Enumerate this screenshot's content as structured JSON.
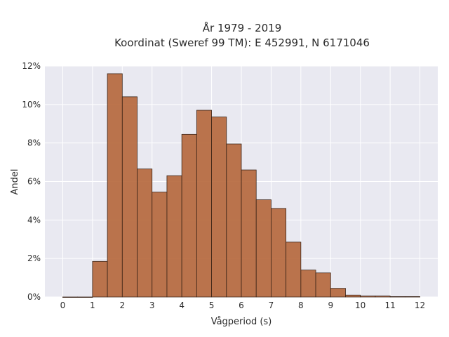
{
  "chart_data": {
    "type": "bar",
    "title_line1": "År 1979 - 2019",
    "title_line2": "Koordinat (Sweref 99 TM): E 452991, N 6171046",
    "xlabel": "Vågperiod (s)",
    "ylabel": "Andel",
    "bin_width": 0.5,
    "bins": [
      {
        "x0": 0.0,
        "value": 0.0
      },
      {
        "x0": 0.5,
        "value": 0.0
      },
      {
        "x0": 1.0,
        "value": 1.85
      },
      {
        "x0": 1.5,
        "value": 11.6
      },
      {
        "x0": 2.0,
        "value": 10.4
      },
      {
        "x0": 2.5,
        "value": 6.65
      },
      {
        "x0": 3.0,
        "value": 5.45
      },
      {
        "x0": 3.5,
        "value": 6.3
      },
      {
        "x0": 4.0,
        "value": 8.45
      },
      {
        "x0": 4.5,
        "value": 9.7
      },
      {
        "x0": 5.0,
        "value": 9.35
      },
      {
        "x0": 5.5,
        "value": 7.95
      },
      {
        "x0": 6.0,
        "value": 6.6
      },
      {
        "x0": 6.5,
        "value": 5.05
      },
      {
        "x0": 7.0,
        "value": 4.6
      },
      {
        "x0": 7.5,
        "value": 2.85
      },
      {
        "x0": 8.0,
        "value": 1.4
      },
      {
        "x0": 8.5,
        "value": 1.25
      },
      {
        "x0": 9.0,
        "value": 0.45
      },
      {
        "x0": 9.5,
        "value": 0.1
      },
      {
        "x0": 10.0,
        "value": 0.05
      },
      {
        "x0": 10.5,
        "value": 0.05
      },
      {
        "x0": 11.0,
        "value": 0.02
      },
      {
        "x0": 11.5,
        "value": 0.02
      }
    ],
    "x_ticks": [
      "0",
      "1",
      "2",
      "3",
      "4",
      "5",
      "6",
      "7",
      "8",
      "9",
      "10",
      "11",
      "12"
    ],
    "y_ticks": [
      "0%",
      "2%",
      "4%",
      "6%",
      "8%",
      "10%",
      "12%"
    ],
    "xlim": [
      -0.6,
      12.6
    ],
    "ylim": [
      0,
      12
    ],
    "grid": true,
    "bar_color": "#b5663a",
    "bar_edge_color": "#3a2418",
    "plot_bg": "#e9e9f1"
  }
}
